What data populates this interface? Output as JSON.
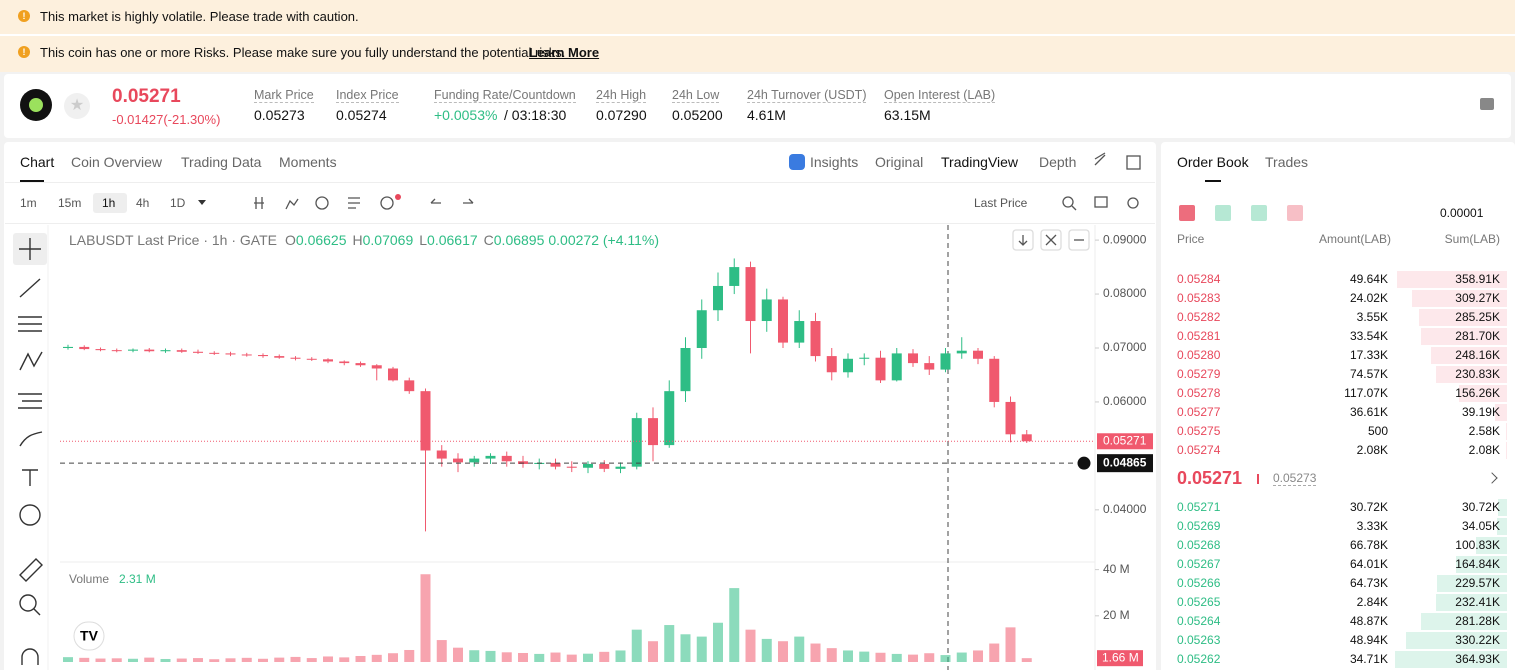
{
  "banners": [
    {
      "text": "This market is highly volatile. Please trade with caution."
    },
    {
      "text": "This coin has one or more Risks. Please make sure you fully understand the potential risks.",
      "link": "Learn More"
    }
  ],
  "header": {
    "price": "0.05271",
    "change": "-0.01427(-21.30%)",
    "stats": [
      {
        "label": "Mark Price",
        "value": "0.05273"
      },
      {
        "label": "Index Price",
        "value": "0.05274"
      },
      {
        "label": "Funding Rate/Countdown",
        "value": "+0.0053%",
        "extra": "/ 03:18:30"
      },
      {
        "label": "24h High",
        "value": "0.07290"
      },
      {
        "label": "24h Low",
        "value": "0.05200"
      },
      {
        "label": "24h Turnover (USDT)",
        "value": "4.61M"
      },
      {
        "label": "Open Interest (LAB)",
        "value": "63.15M"
      }
    ]
  },
  "tabs": [
    "Chart",
    "Coin Overview",
    "Trading Data",
    "Moments"
  ],
  "views": [
    "Insights",
    "Original",
    "TradingView",
    "Depth"
  ],
  "intervals": [
    "1m",
    "15m",
    "1h",
    "4h",
    "1D"
  ],
  "price_type": "Last Price",
  "chart_data": {
    "type": "candlestick",
    "title": "LABUSDT Last Price · 1h · GATE",
    "legend": [
      {
        "label": "O",
        "value": "0.06625"
      },
      {
        "label": "H",
        "value": "0.07069"
      },
      {
        "label": "L",
        "value": "0.06617"
      },
      {
        "label": "C",
        "value": "0.06895"
      }
    ],
    "legend_change": "0.00272 (+4.11%)",
    "up_color": "#2ebd85",
    "down_color": "#f0596e",
    "ylim": [
      0.0307,
      0.0928
    ],
    "yticks": [
      {
        "value": 0.04,
        "label": "0.04000"
      },
      {
        "value": 0.06,
        "label": "0.06000"
      },
      {
        "value": 0.07,
        "label": "0.07000"
      },
      {
        "value": 0.08,
        "label": "0.08000"
      },
      {
        "value": 0.09,
        "label": "0.09000"
      }
    ],
    "open": [
      0.07,
      0.0702,
      0.0698,
      0.0696,
      0.0695,
      0.0697,
      0.0694,
      0.0696,
      0.0693,
      0.0691,
      0.069,
      0.0688,
      0.0687,
      0.0685,
      0.0682,
      0.068,
      0.0679,
      0.0675,
      0.0672,
      0.0668,
      0.0662,
      0.064,
      0.062,
      0.051,
      0.0495,
      0.0488,
      0.0495,
      0.05,
      0.049,
      0.0485,
      0.0487,
      0.048,
      0.0478,
      0.0485,
      0.0476,
      0.048,
      0.057,
      0.052,
      0.062,
      0.07,
      0.077,
      0.0815,
      0.085,
      0.075,
      0.079,
      0.071,
      0.075,
      0.0685,
      0.0655,
      0.068,
      0.0682,
      0.064,
      0.069,
      0.0672,
      0.066,
      0.069,
      0.0695,
      0.068,
      0.06,
      0.054
    ],
    "high": [
      0.0706,
      0.0705,
      0.0701,
      0.0699,
      0.0699,
      0.07,
      0.0699,
      0.0699,
      0.0697,
      0.0694,
      0.0693,
      0.0691,
      0.069,
      0.0688,
      0.0685,
      0.0683,
      0.0681,
      0.0677,
      0.0675,
      0.067,
      0.0665,
      0.0645,
      0.0625,
      0.052,
      0.0505,
      0.05,
      0.0505,
      0.0508,
      0.05,
      0.0495,
      0.0495,
      0.049,
      0.049,
      0.0492,
      0.0488,
      0.058,
      0.059,
      0.064,
      0.072,
      0.079,
      0.084,
      0.0866,
      0.086,
      0.081,
      0.0795,
      0.077,
      0.0765,
      0.07,
      0.069,
      0.069,
      0.0695,
      0.07,
      0.0698,
      0.0685,
      0.07,
      0.072,
      0.07,
      0.0685,
      0.061,
      0.0548
    ],
    "low": [
      0.0697,
      0.0696,
      0.0694,
      0.0692,
      0.0692,
      0.0692,
      0.0691,
      0.0691,
      0.0689,
      0.0687,
      0.0685,
      0.0684,
      0.0682,
      0.068,
      0.0677,
      0.0676,
      0.0672,
      0.0668,
      0.0665,
      0.064,
      0.0638,
      0.0615,
      0.036,
      0.048,
      0.047,
      0.048,
      0.0485,
      0.048,
      0.0478,
      0.0475,
      0.0475,
      0.047,
      0.0468,
      0.047,
      0.0468,
      0.0475,
      0.049,
      0.0515,
      0.06,
      0.068,
      0.075,
      0.08,
      0.069,
      0.073,
      0.07,
      0.07,
      0.0675,
      0.064,
      0.0645,
      0.0668,
      0.0635,
      0.0638,
      0.0665,
      0.065,
      0.0655,
      0.068,
      0.067,
      0.059,
      0.0525,
      0.0524
    ],
    "close": [
      0.0702,
      0.0698,
      0.0696,
      0.0695,
      0.0697,
      0.0694,
      0.0696,
      0.0693,
      0.0691,
      0.069,
      0.0688,
      0.0687,
      0.0685,
      0.0682,
      0.068,
      0.0679,
      0.0675,
      0.0672,
      0.0668,
      0.0662,
      0.064,
      0.062,
      0.051,
      0.0495,
      0.0488,
      0.0495,
      0.05,
      0.049,
      0.0485,
      0.0487,
      0.048,
      0.0478,
      0.0485,
      0.0476,
      0.048,
      0.057,
      0.052,
      0.062,
      0.07,
      0.077,
      0.0815,
      0.085,
      0.075,
      0.079,
      0.071,
      0.075,
      0.0685,
      0.0655,
      0.068,
      0.0682,
      0.064,
      0.069,
      0.0672,
      0.066,
      0.069,
      0.0695,
      0.068,
      0.06,
      0.054,
      0.05271
    ],
    "last_price": {
      "value": 0.05271,
      "label": "0.05271"
    },
    "crosshair": {
      "value": 0.04865,
      "label": "0.04865"
    },
    "volume": {
      "title": "Volume",
      "last": "2.31 M",
      "ylim": [
        0,
        42000000
      ],
      "yticks": [
        {
          "value": 20000000,
          "label": "20 M"
        },
        {
          "value": 40000000,
          "label": "40 M"
        }
      ],
      "values": [
        2100000,
        1800000,
        1500000,
        1600000,
        1400000,
        1900000,
        1300000,
        1500000,
        1700000,
        1200000,
        1600000,
        1800000,
        1400000,
        1900000,
        2200000,
        1700000,
        2400000,
        2000000,
        2600000,
        3100000,
        3800000,
        5200000,
        38000000,
        9500000,
        6200000,
        5100000,
        4800000,
        4200000,
        3900000,
        3500000,
        4100000,
        3200000,
        3600000,
        4400000,
        5000000,
        14000000,
        9000000,
        16000000,
        12000000,
        11000000,
        17000000,
        32000000,
        14000000,
        10000000,
        9000000,
        11000000,
        8000000,
        6000000,
        5000000,
        4500000,
        4000000,
        3500000,
        3200000,
        3800000,
        3000000,
        4100000,
        5000000,
        8000000,
        15000000,
        1660000
      ],
      "last_tag": {
        "value": 1660000,
        "label": "1.66 M"
      }
    }
  },
  "order_book": {
    "tabs": [
      "Order Book",
      "Trades"
    ],
    "precision": "0.00001",
    "columns": [
      "Price",
      "Amount(LAB)",
      "Sum(LAB)"
    ],
    "asks": [
      [
        "0.05284",
        "49.64K",
        "358.91K"
      ],
      [
        "0.05283",
        "24.02K",
        "309.27K"
      ],
      [
        "0.05282",
        "3.55K",
        "285.25K"
      ],
      [
        "0.05281",
        "33.54K",
        "281.70K"
      ],
      [
        "0.05280",
        "17.33K",
        "248.16K"
      ],
      [
        "0.05279",
        "74.57K",
        "230.83K"
      ],
      [
        "0.05278",
        "117.07K",
        "156.26K"
      ],
      [
        "0.05277",
        "36.61K",
        "39.19K"
      ],
      [
        "0.05275",
        "500",
        "2.58K"
      ],
      [
        "0.05274",
        "2.08K",
        "2.08K"
      ]
    ],
    "mid_price": "0.05271",
    "mark_price": "0.05273",
    "bids": [
      [
        "0.05271",
        "30.72K",
        "30.72K"
      ],
      [
        "0.05269",
        "3.33K",
        "34.05K"
      ],
      [
        "0.05268",
        "66.78K",
        "100.83K"
      ],
      [
        "0.05267",
        "64.01K",
        "164.84K"
      ],
      [
        "0.05266",
        "64.73K",
        "229.57K"
      ],
      [
        "0.05265",
        "2.84K",
        "232.41K"
      ],
      [
        "0.05264",
        "48.87K",
        "281.28K"
      ],
      [
        "0.05263",
        "48.94K",
        "330.22K"
      ],
      [
        "0.05262",
        "34.71K",
        "364.93K"
      ]
    ]
  }
}
